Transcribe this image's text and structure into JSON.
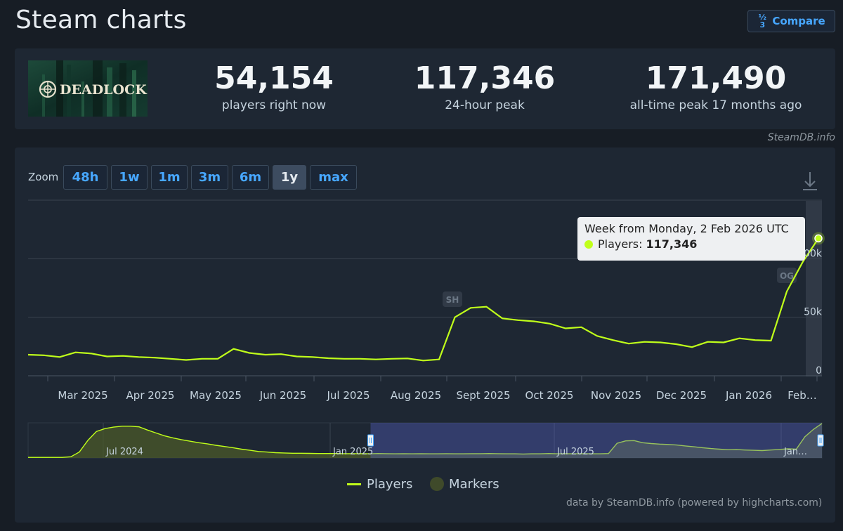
{
  "header": {
    "title": "Steam charts",
    "compare_label": "Compare"
  },
  "game": {
    "logo_text": "DEADLOCK"
  },
  "stats": {
    "current": {
      "value": "54,154",
      "label": "players right now"
    },
    "peak24": {
      "value": "117,346",
      "label": "24-hour peak"
    },
    "alltime": {
      "value": "171,490",
      "label": "all-time peak 17 months ago"
    }
  },
  "credit_top": "SteamDB.info",
  "zoom": {
    "label": "Zoom",
    "options": [
      "48h",
      "1w",
      "1m",
      "3m",
      "6m",
      "1y",
      "max"
    ],
    "selected": "1y"
  },
  "tooltip": {
    "title": "Week from Monday, 2 Feb 2026 UTC",
    "series": "Players:",
    "value": "117,346"
  },
  "legend": {
    "players": "Players",
    "markers": "Markers"
  },
  "credit_bottom": "data by SteamDB.info (powered by highcharts.com)",
  "colors": {
    "line": "#c0ff1a",
    "background": "#171d25",
    "panel": "#1e2733",
    "accent": "#47a7ff"
  },
  "chart_data": {
    "type": "line",
    "series": [
      {
        "name": "Players",
        "x": [
          "2025-02-17",
          "2025-02-24",
          "2025-03-03",
          "2025-03-10",
          "2025-03-17",
          "2025-03-24",
          "2025-03-31",
          "2025-04-07",
          "2025-04-14",
          "2025-04-21",
          "2025-04-28",
          "2025-05-05",
          "2025-05-12",
          "2025-05-19",
          "2025-05-26",
          "2025-06-02",
          "2025-06-09",
          "2025-06-16",
          "2025-06-23",
          "2025-06-30",
          "2025-07-07",
          "2025-07-14",
          "2025-07-21",
          "2025-07-28",
          "2025-08-04",
          "2025-08-11",
          "2025-08-18",
          "2025-08-25",
          "2025-09-01",
          "2025-09-08",
          "2025-09-15",
          "2025-09-22",
          "2025-09-29",
          "2025-10-06",
          "2025-10-13",
          "2025-10-20",
          "2025-10-27",
          "2025-11-03",
          "2025-11-10",
          "2025-11-17",
          "2025-11-24",
          "2025-12-01",
          "2025-12-08",
          "2025-12-15",
          "2025-12-22",
          "2025-12-29",
          "2026-01-05",
          "2026-01-12",
          "2026-01-19",
          "2026-01-26",
          "2026-02-02"
        ],
        "values": [
          18000,
          17500,
          16000,
          20000,
          19000,
          16500,
          17000,
          16000,
          15500,
          14500,
          13500,
          14500,
          14500,
          23000,
          19500,
          18000,
          18500,
          16500,
          16000,
          15000,
          14500,
          14500,
          14000,
          14500,
          14800,
          13000,
          14000,
          50000,
          58000,
          59000,
          49000,
          47500,
          46500,
          44500,
          40500,
          41500,
          34000,
          30500,
          27500,
          29000,
          28500,
          27000,
          24500,
          29000,
          28500,
          32000,
          30500,
          30000,
          72000,
          97000,
          117346
        ]
      }
    ],
    "markers": [
      {
        "label": "SH",
        "x": "2025-08-25"
      },
      {
        "label": "OG",
        "x": "2026-01-26"
      }
    ],
    "x_tick_labels": [
      "Mar 2025",
      "Apr 2025",
      "May 2025",
      "Jun 2025",
      "Jul 2025",
      "Aug 2025",
      "Sept 2025",
      "Oct 2025",
      "Nov 2025",
      "Dec 2025",
      "Jan 2026",
      "Feb…"
    ],
    "y_tick_labels": [
      "0",
      "50k",
      "100k"
    ],
    "ylim": [
      0,
      150000
    ],
    "grid": true,
    "legend_position": "bottom-center",
    "navigator": {
      "labels": [
        "Jul 2024",
        "Jan 2025",
        "Jul 2025",
        "Jan…"
      ],
      "values": [
        2000,
        2000,
        2000,
        2000,
        2000,
        4000,
        20000,
        60000,
        90000,
        100000,
        105000,
        108000,
        108000,
        106000,
        95000,
        85000,
        75000,
        68000,
        62000,
        57000,
        52000,
        48000,
        43000,
        39000,
        35000,
        30000,
        26000,
        22000,
        20000,
        18000,
        17000,
        16000,
        16000,
        15500,
        15000,
        15000,
        15000,
        14500,
        14500,
        14500,
        14000,
        15000,
        14500,
        14000,
        14500,
        14000,
        14500,
        14000,
        14000,
        14500,
        14000,
        14000,
        14500,
        14500,
        15000,
        14500,
        14000,
        14000,
        13500,
        14000,
        14000,
        15000,
        14000,
        14500,
        14000,
        14500,
        14000,
        14000,
        15000,
        50000,
        58000,
        59000,
        52000,
        49000,
        47000,
        46000,
        44000,
        41000,
        38000,
        35000,
        32000,
        30000,
        28000,
        28500,
        27000,
        26000,
        25000,
        27000,
        29000,
        31000,
        30000,
        72000,
        97000,
        117346
      ],
      "selection_start_fraction": 0.35
    }
  }
}
